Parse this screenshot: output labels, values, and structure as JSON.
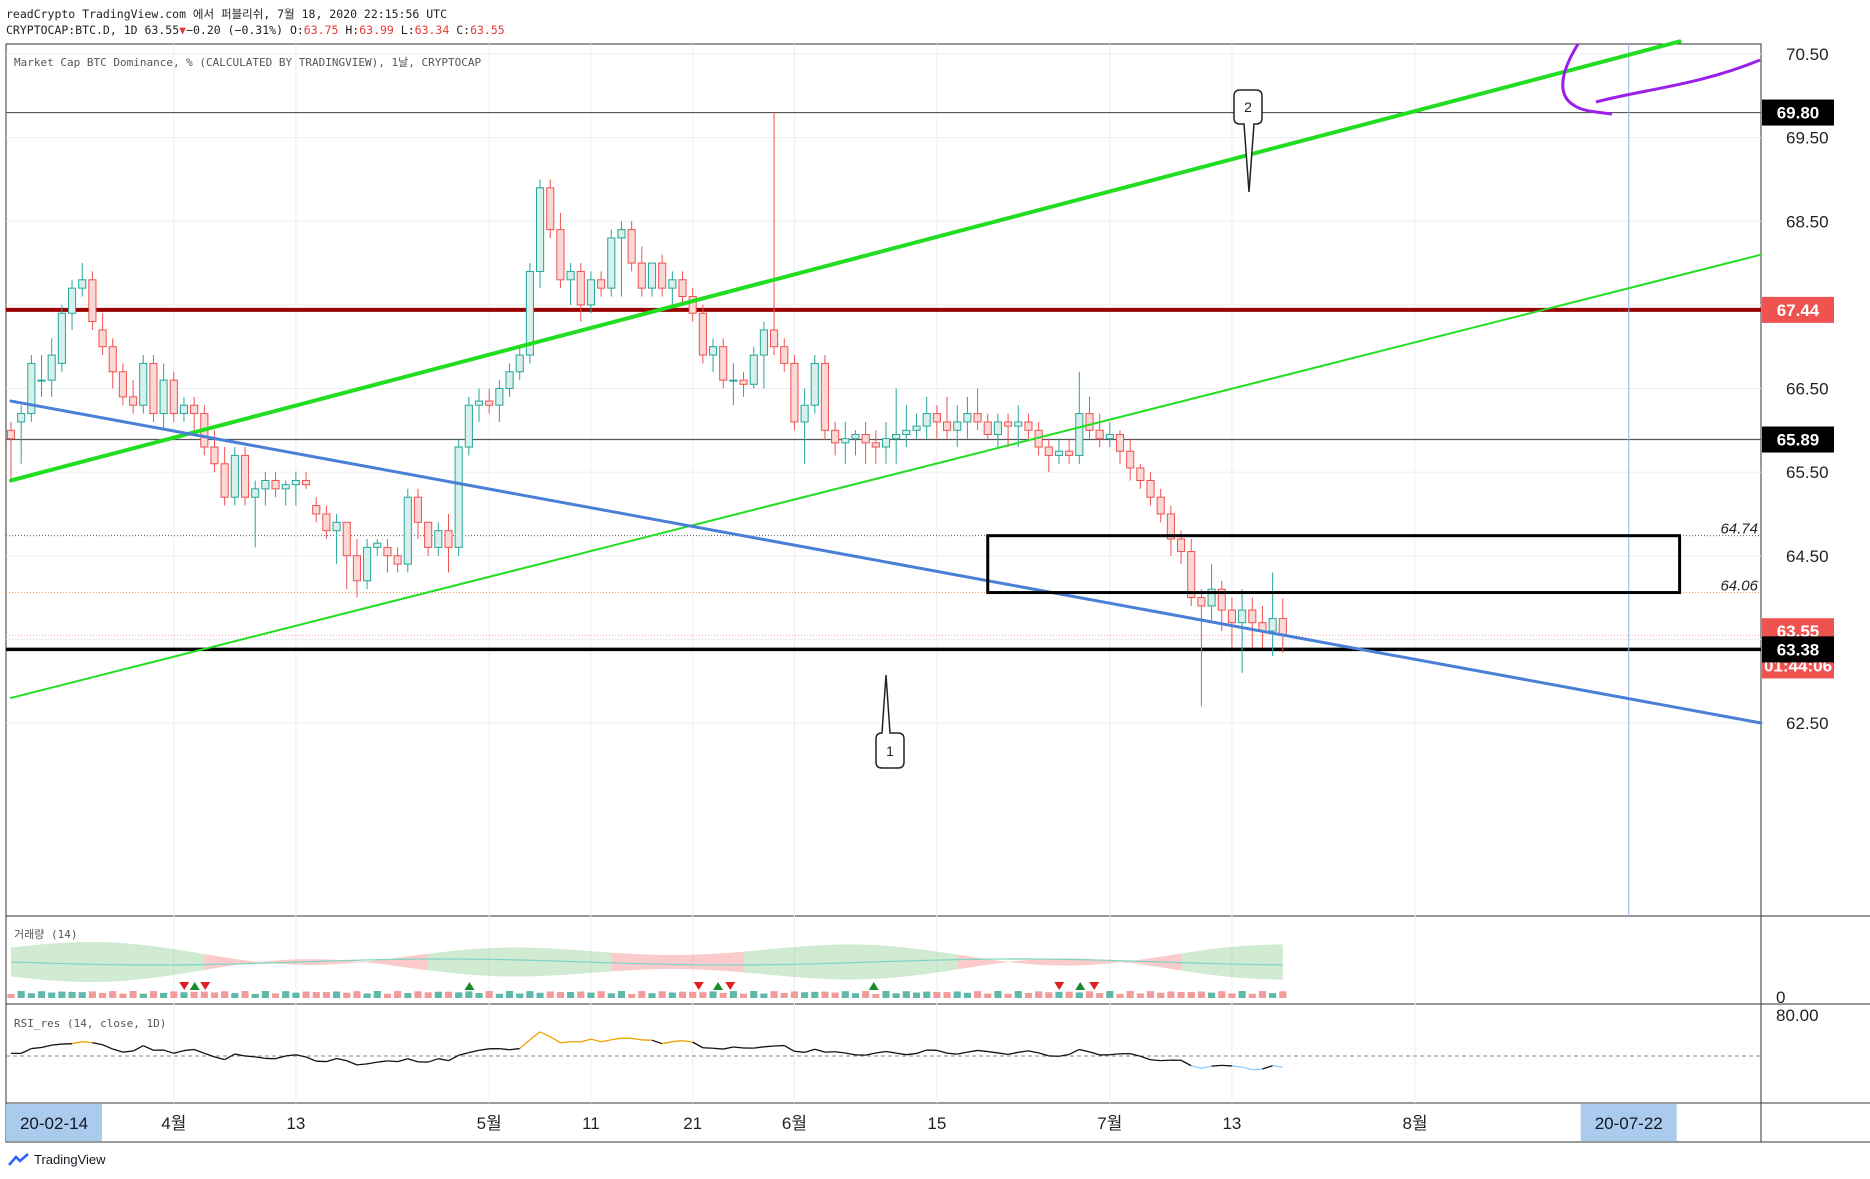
{
  "header": {
    "line1": "readCrypto TradingView.com 에서 퍼블리쉬, 7월 18, 2020 22:15:56 UTC",
    "symbol": "CRYPTOCAP:BTC.D, 1D",
    "last": "63.55",
    "change_arrow": "▼",
    "change": "−0.20 (−0.31%)",
    "o_label": "O:",
    "o": "63.75",
    "h_label": "H:",
    "h": "63.99",
    "l_label": "L:",
    "l": "63.34",
    "c_label": "C:",
    "c": "63.55"
  },
  "chart_title": "Market Cap BTC Dominance, % (CALCULATED BY TRADINGVIEW), 1날, CRYPTOCAP",
  "price_labels": [
    {
      "value": "69.80",
      "style": "dark"
    },
    {
      "value": "67.44",
      "style": "red"
    },
    {
      "value": "65.89",
      "style": "dark"
    },
    {
      "value": "63.55",
      "style": "red"
    },
    {
      "value": "63.38",
      "style": "dark"
    },
    {
      "value": "01:44:06",
      "style": "red"
    }
  ],
  "price_ticks": [
    "70.50",
    "69.50",
    "68.50",
    "66.50",
    "65.50",
    "64.50",
    "62.50"
  ],
  "dotted_levels": [
    {
      "value": "64.74"
    },
    {
      "value": "64.06"
    }
  ],
  "annotations": {
    "arrow1": "1",
    "arrow2": "2"
  },
  "volume_pane": {
    "label": "거래량 (14)",
    "zero_tick": "0"
  },
  "rsi_pane": {
    "label": "RSI_res (14, close, 1D)",
    "tick": "80.00"
  },
  "time_axis": {
    "start_badge": "20-02-14",
    "end_badge": "20-07-22",
    "ticks": [
      "4월",
      "13",
      "5월",
      "11",
      "21",
      "6월",
      "15",
      "7월",
      "13",
      "8월"
    ]
  },
  "footer": {
    "brand": "TradingView"
  },
  "colors": {
    "up": "#26a69a",
    "down": "#ef5350",
    "green_line": "#22dd22",
    "blue_line": "#4a7fd6",
    "red_level": "#990000",
    "purple": "#9b1fe8"
  },
  "chart_data": {
    "type": "candlestick",
    "symbol": "CRYPTOCAP:BTC.D",
    "timeframe": "1D",
    "x_range": [
      "2020-02-14",
      "2020-08-04"
    ],
    "y_range": [
      62.0,
      70.7
    ],
    "horizontal_levels": [
      69.8,
      67.44,
      65.89,
      63.38
    ],
    "dotted_levels": [
      64.74,
      64.06
    ],
    "candles": [
      [
        66.0,
        66.1,
        65.4,
        65.9
      ],
      [
        66.1,
        66.3,
        65.6,
        66.2
      ],
      [
        66.2,
        66.9,
        66.1,
        66.8
      ],
      [
        66.6,
        66.9,
        66.4,
        66.6
      ],
      [
        66.6,
        67.1,
        66.4,
        66.9
      ],
      [
        66.8,
        67.5,
        66.7,
        67.4
      ],
      [
        67.4,
        67.8,
        67.2,
        67.7
      ],
      [
        67.7,
        68.0,
        67.6,
        67.8
      ],
      [
        67.8,
        67.9,
        67.2,
        67.3
      ],
      [
        67.2,
        67.4,
        66.9,
        67.0
      ],
      [
        67.0,
        67.1,
        66.5,
        66.7
      ],
      [
        66.7,
        66.8,
        66.3,
        66.4
      ],
      [
        66.4,
        66.6,
        66.2,
        66.3
      ],
      [
        66.3,
        66.9,
        66.2,
        66.8
      ],
      [
        66.8,
        66.9,
        66.1,
        66.2
      ],
      [
        66.2,
        66.8,
        66.0,
        66.6
      ],
      [
        66.6,
        66.7,
        66.1,
        66.2
      ],
      [
        66.2,
        66.4,
        66.1,
        66.3
      ],
      [
        66.3,
        66.4,
        66.0,
        66.2
      ],
      [
        66.2,
        66.3,
        65.7,
        65.8
      ],
      [
        65.8,
        66.0,
        65.5,
        65.6
      ],
      [
        65.6,
        65.8,
        65.1,
        65.2
      ],
      [
        65.2,
        65.8,
        65.1,
        65.7
      ],
      [
        65.7,
        65.8,
        65.1,
        65.2
      ],
      [
        65.2,
        65.4,
        64.6,
        65.3
      ],
      [
        65.3,
        65.5,
        65.1,
        65.4
      ],
      [
        65.4,
        65.5,
        65.2,
        65.3
      ],
      [
        65.3,
        65.4,
        65.1,
        65.35
      ],
      [
        65.35,
        65.5,
        65.1,
        65.4
      ],
      [
        65.4,
        65.5,
        65.3,
        65.35
      ],
      [
        65.1,
        65.2,
        64.9,
        65.0
      ],
      [
        65.0,
        65.1,
        64.7,
        64.8
      ],
      [
        64.8,
        65.0,
        64.4,
        64.9
      ],
      [
        64.9,
        64.9,
        64.1,
        64.5
      ],
      [
        64.5,
        64.7,
        64.0,
        64.2
      ],
      [
        64.2,
        64.7,
        64.1,
        64.6
      ],
      [
        64.6,
        64.7,
        64.5,
        64.65
      ],
      [
        64.6,
        64.7,
        64.3,
        64.5
      ],
      [
        64.5,
        64.6,
        64.3,
        64.4
      ],
      [
        64.4,
        65.3,
        64.3,
        65.2
      ],
      [
        65.2,
        65.3,
        64.7,
        64.9
      ],
      [
        64.9,
        64.9,
        64.5,
        64.6
      ],
      [
        64.6,
        64.9,
        64.5,
        64.8
      ],
      [
        64.8,
        65.0,
        64.3,
        64.6
      ],
      [
        64.6,
        65.9,
        64.5,
        65.8
      ],
      [
        65.8,
        66.4,
        65.7,
        66.3
      ],
      [
        66.3,
        66.5,
        66.1,
        66.35
      ],
      [
        66.35,
        66.5,
        66.2,
        66.3
      ],
      [
        66.3,
        66.6,
        66.1,
        66.5
      ],
      [
        66.5,
        66.8,
        66.4,
        66.7
      ],
      [
        66.7,
        67.0,
        66.6,
        66.9
      ],
      [
        66.9,
        68.0,
        66.8,
        67.9
      ],
      [
        67.9,
        69.0,
        67.7,
        68.9
      ],
      [
        68.9,
        69.0,
        68.3,
        68.4
      ],
      [
        68.4,
        68.6,
        67.7,
        67.8
      ],
      [
        67.8,
        68.0,
        67.5,
        67.9
      ],
      [
        67.9,
        68.0,
        67.3,
        67.5
      ],
      [
        67.5,
        67.9,
        67.4,
        67.8
      ],
      [
        67.8,
        67.9,
        67.6,
        67.7
      ],
      [
        67.7,
        68.4,
        67.6,
        68.3
      ],
      [
        68.3,
        68.5,
        67.6,
        68.4
      ],
      [
        68.4,
        68.5,
        67.9,
        68.0
      ],
      [
        68.0,
        68.2,
        67.6,
        67.7
      ],
      [
        67.7,
        68.0,
        67.6,
        68.0
      ],
      [
        68.0,
        68.1,
        67.6,
        67.7
      ],
      [
        67.7,
        67.9,
        67.5,
        67.8
      ],
      [
        67.8,
        67.9,
        67.5,
        67.6
      ],
      [
        67.6,
        67.7,
        67.3,
        67.4
      ],
      [
        67.4,
        67.5,
        66.8,
        66.9
      ],
      [
        66.9,
        67.1,
        66.7,
        67.0
      ],
      [
        67.0,
        67.1,
        66.5,
        66.6
      ],
      [
        66.6,
        66.8,
        66.3,
        66.6
      ],
      [
        66.6,
        66.7,
        66.4,
        66.55
      ],
      [
        66.55,
        67.0,
        66.5,
        66.9
      ],
      [
        66.9,
        67.3,
        66.5,
        67.2
      ],
      [
        67.2,
        69.8,
        66.9,
        67.0
      ],
      [
        67.0,
        67.1,
        66.7,
        66.8
      ],
      [
        66.8,
        66.9,
        66.0,
        66.1
      ],
      [
        66.1,
        66.5,
        65.6,
        66.3
      ],
      [
        66.3,
        66.9,
        66.2,
        66.8
      ],
      [
        66.8,
        66.9,
        65.9,
        66.0
      ],
      [
        66.0,
        66.1,
        65.7,
        65.85
      ],
      [
        65.85,
        66.1,
        65.6,
        65.9
      ],
      [
        65.9,
        66.0,
        65.7,
        65.95
      ],
      [
        65.95,
        66.1,
        65.6,
        65.85
      ],
      [
        65.85,
        66.0,
        65.6,
        65.8
      ],
      [
        65.8,
        66.1,
        65.6,
        65.9
      ],
      [
        65.9,
        66.5,
        65.6,
        65.95
      ],
      [
        65.95,
        66.3,
        65.8,
        66.0
      ],
      [
        66.0,
        66.2,
        65.9,
        66.05
      ],
      [
        66.05,
        66.4,
        65.9,
        66.2
      ],
      [
        66.2,
        66.3,
        65.9,
        66.1
      ],
      [
        66.1,
        66.4,
        65.9,
        66.0
      ],
      [
        66.0,
        66.3,
        65.8,
        66.1
      ],
      [
        66.1,
        66.4,
        65.9,
        66.2
      ],
      [
        66.2,
        66.5,
        66.0,
        66.1
      ],
      [
        66.1,
        66.2,
        65.9,
        65.95
      ],
      [
        65.95,
        66.2,
        65.8,
        66.1
      ],
      [
        66.1,
        66.2,
        65.8,
        66.05
      ],
      [
        66.05,
        66.3,
        65.8,
        66.1
      ],
      [
        66.1,
        66.2,
        65.9,
        66.0
      ],
      [
        66.0,
        66.1,
        65.7,
        65.8
      ],
      [
        65.8,
        65.9,
        65.5,
        65.7
      ],
      [
        65.7,
        65.9,
        65.6,
        65.75
      ],
      [
        65.75,
        65.9,
        65.6,
        65.7
      ],
      [
        65.7,
        66.7,
        65.6,
        66.2
      ],
      [
        66.2,
        66.4,
        65.9,
        66.0
      ],
      [
        66.0,
        66.2,
        65.8,
        65.9
      ],
      [
        65.9,
        66.1,
        65.8,
        65.95
      ],
      [
        65.95,
        66.0,
        65.6,
        65.75
      ],
      [
        65.75,
        65.9,
        65.4,
        65.55
      ],
      [
        65.55,
        65.6,
        65.3,
        65.4
      ],
      [
        65.4,
        65.5,
        65.1,
        65.2
      ],
      [
        65.2,
        65.3,
        64.9,
        65.0
      ],
      [
        65.0,
        65.1,
        64.5,
        64.7
      ],
      [
        64.7,
        64.8,
        64.4,
        64.55
      ],
      [
        64.55,
        64.7,
        63.9,
        64.0
      ],
      [
        64.0,
        64.1,
        62.7,
        63.9
      ],
      [
        63.9,
        64.4,
        63.7,
        64.1
      ],
      [
        64.1,
        64.2,
        63.6,
        63.85
      ],
      [
        63.85,
        64.0,
        63.4,
        63.7
      ],
      [
        63.7,
        64.1,
        63.1,
        63.85
      ],
      [
        63.85,
        64.0,
        63.4,
        63.7
      ],
      [
        63.7,
        63.9,
        63.4,
        63.6
      ],
      [
        63.6,
        64.3,
        63.3,
        63.75
      ],
      [
        63.75,
        63.99,
        63.34,
        63.55
      ]
    ],
    "trendlines": [
      {
        "name": "",
        "color": "#22dd22",
        "width": 4,
        "from": [
          "2020-02-14",
          65.4
        ],
        "to": [
          "2020-07-27",
          70.65
        ]
      },
      {
        "name": "",
        "color": "#22dd22",
        "width": 2,
        "from": [
          "2020-02-14",
          62.8
        ],
        "to": [
          "2020-08-04",
          68.1
        ]
      },
      {
        "name": "",
        "color": "#4a7fd6",
        "width": 3,
        "from": [
          "2020-02-14",
          66.35
        ],
        "to": [
          "2020-08-04",
          62.5
        ]
      }
    ],
    "rectangle": {
      "from": [
        "2020-05-20",
        64.74
      ],
      "to": [
        "2020-07-27",
        64.06
      ]
    },
    "vertical_marker": "2020-07-22",
    "last_price": 63.55
  }
}
